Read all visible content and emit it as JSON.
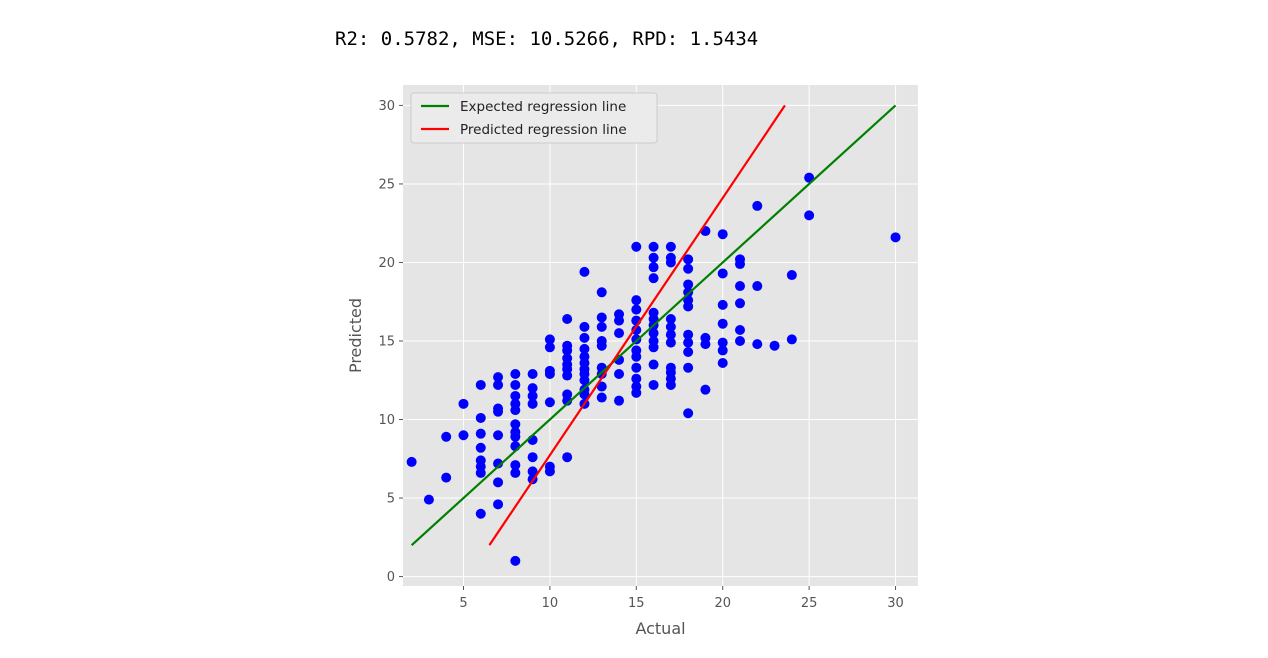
{
  "metrics_text": "R2: 0.5782, MSE: 10.5266, RPD: 1.5434",
  "chart_data": {
    "type": "scatter",
    "xlabel": "Actual",
    "ylabel": "Predicted",
    "xlim": [
      1.5,
      31.3
    ],
    "ylim": [
      -0.6,
      31.3
    ],
    "xticks": [
      5,
      10,
      15,
      20,
      25,
      30
    ],
    "yticks": [
      0,
      5,
      10,
      15,
      20,
      25,
      30
    ],
    "grid": true,
    "legend_position": "top-left",
    "background": "#e5e5e5",
    "point_color": "#0000ff",
    "lines": [
      {
        "name": "Expected regression line",
        "color": "#008000",
        "x": [
          2,
          30
        ],
        "y": [
          2,
          30
        ]
      },
      {
        "name": "Predicted regression line",
        "color": "#ff0000",
        "x": [
          6.5,
          23.6
        ],
        "y": [
          2.0,
          30.0
        ]
      }
    ],
    "points": [
      [
        2,
        7.3
      ],
      [
        3,
        4.9
      ],
      [
        4,
        8.9
      ],
      [
        4,
        6.3
      ],
      [
        5,
        11.0
      ],
      [
        5,
        9.0
      ],
      [
        6,
        4.0
      ],
      [
        6,
        6.6
      ],
      [
        6,
        7.0
      ],
      [
        6,
        7.4
      ],
      [
        6,
        8.2
      ],
      [
        6,
        9.1
      ],
      [
        6,
        10.1
      ],
      [
        6,
        12.2
      ],
      [
        7,
        4.6
      ],
      [
        7,
        6.0
      ],
      [
        7,
        7.2
      ],
      [
        7,
        9.0
      ],
      [
        7,
        10.5
      ],
      [
        7,
        10.7
      ],
      [
        7,
        12.2
      ],
      [
        7,
        12.7
      ],
      [
        8,
        1.0
      ],
      [
        8,
        6.6
      ],
      [
        8,
        7.1
      ],
      [
        8,
        8.3
      ],
      [
        8,
        8.9
      ],
      [
        8,
        9.2
      ],
      [
        8,
        9.7
      ],
      [
        8,
        10.6
      ],
      [
        8,
        11.0
      ],
      [
        8,
        11.5
      ],
      [
        8,
        12.2
      ],
      [
        8,
        12.9
      ],
      [
        9,
        6.2
      ],
      [
        9,
        6.7
      ],
      [
        9,
        7.6
      ],
      [
        9,
        8.7
      ],
      [
        9,
        11.0
      ],
      [
        9,
        11.5
      ],
      [
        9,
        12.0
      ],
      [
        9,
        12.9
      ],
      [
        10,
        6.7
      ],
      [
        10,
        7.0
      ],
      [
        10,
        11.1
      ],
      [
        10,
        12.9
      ],
      [
        10,
        13.1
      ],
      [
        10,
        14.6
      ],
      [
        10,
        15.1
      ],
      [
        11,
        7.6
      ],
      [
        11,
        11.2
      ],
      [
        11,
        11.6
      ],
      [
        11,
        12.8
      ],
      [
        11,
        13.2
      ],
      [
        11,
        13.5
      ],
      [
        11,
        13.9
      ],
      [
        11,
        14.4
      ],
      [
        11,
        14.7
      ],
      [
        11,
        16.4
      ],
      [
        12,
        11.0
      ],
      [
        12,
        11.6
      ],
      [
        12,
        11.9
      ],
      [
        12,
        12.5
      ],
      [
        12,
        12.9
      ],
      [
        12,
        13.2
      ],
      [
        12,
        13.6
      ],
      [
        12,
        14.0
      ],
      [
        12,
        14.5
      ],
      [
        12,
        15.2
      ],
      [
        12,
        15.9
      ],
      [
        12,
        19.4
      ],
      [
        13,
        11.4
      ],
      [
        13,
        12.1
      ],
      [
        13,
        12.9
      ],
      [
        13,
        13.3
      ],
      [
        13,
        14.7
      ],
      [
        13,
        15.0
      ],
      [
        13,
        15.9
      ],
      [
        13,
        16.5
      ],
      [
        13,
        18.1
      ],
      [
        14,
        11.2
      ],
      [
        14,
        12.9
      ],
      [
        14,
        13.8
      ],
      [
        14,
        15.5
      ],
      [
        14,
        16.3
      ],
      [
        14,
        16.7
      ],
      [
        15,
        11.7
      ],
      [
        15,
        12.1
      ],
      [
        15,
        12.6
      ],
      [
        15,
        13.3
      ],
      [
        15,
        14.0
      ],
      [
        15,
        14.4
      ],
      [
        15,
        15.1
      ],
      [
        15,
        15.7
      ],
      [
        15,
        16.3
      ],
      [
        15,
        17.0
      ],
      [
        15,
        17.6
      ],
      [
        15,
        21.0
      ],
      [
        16,
        12.2
      ],
      [
        16,
        13.5
      ],
      [
        16,
        14.6
      ],
      [
        16,
        15.0
      ],
      [
        16,
        15.5
      ],
      [
        16,
        16.0
      ],
      [
        16,
        16.4
      ],
      [
        16,
        16.8
      ],
      [
        16,
        19.0
      ],
      [
        16,
        19.7
      ],
      [
        16,
        20.3
      ],
      [
        16,
        21.0
      ],
      [
        17,
        12.2
      ],
      [
        17,
        12.6
      ],
      [
        17,
        13.0
      ],
      [
        17,
        13.3
      ],
      [
        17,
        14.9
      ],
      [
        17,
        15.4
      ],
      [
        17,
        15.9
      ],
      [
        17,
        16.4
      ],
      [
        17,
        20.0
      ],
      [
        17,
        20.3
      ],
      [
        17,
        21.0
      ],
      [
        18,
        10.4
      ],
      [
        18,
        13.3
      ],
      [
        18,
        14.3
      ],
      [
        18,
        14.9
      ],
      [
        18,
        15.4
      ],
      [
        18,
        17.2
      ],
      [
        18,
        17.6
      ],
      [
        18,
        18.1
      ],
      [
        18,
        18.6
      ],
      [
        18,
        19.6
      ],
      [
        18,
        20.2
      ],
      [
        19,
        11.9
      ],
      [
        19,
        14.8
      ],
      [
        19,
        15.2
      ],
      [
        19,
        22.0
      ],
      [
        20,
        13.6
      ],
      [
        20,
        14.4
      ],
      [
        20,
        14.9
      ],
      [
        20,
        16.1
      ],
      [
        20,
        17.3
      ],
      [
        20,
        19.3
      ],
      [
        20,
        21.8
      ],
      [
        21,
        15.0
      ],
      [
        21,
        15.7
      ],
      [
        21,
        17.4
      ],
      [
        21,
        18.5
      ],
      [
        21,
        19.9
      ],
      [
        21,
        20.2
      ],
      [
        22,
        14.8
      ],
      [
        22,
        18.5
      ],
      [
        22,
        23.6
      ],
      [
        23,
        14.7
      ],
      [
        24,
        15.1
      ],
      [
        24,
        19.2
      ],
      [
        25,
        23.0
      ],
      [
        25,
        25.4
      ],
      [
        30,
        21.6
      ]
    ]
  }
}
